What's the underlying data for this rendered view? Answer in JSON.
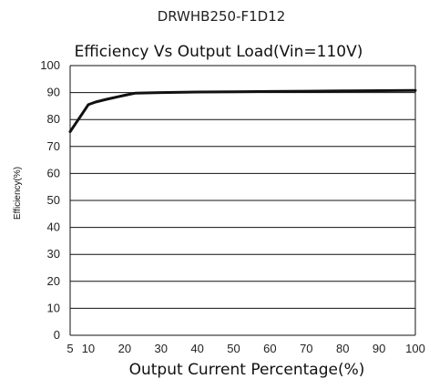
{
  "chart_data": {
    "type": "line",
    "model": "DRWHB250-F1D12",
    "title": "Efficiency Vs Output Load(Vin=110V)",
    "xlabel": "Output Current Percentage(%)",
    "ylabel": "Efficiency(%)",
    "x_ticks": [
      "5",
      "10",
      "20",
      "30",
      "40",
      "50",
      "60",
      "70",
      "80",
      "90",
      "100"
    ],
    "y_ticks": [
      "0",
      "10",
      "20",
      "30",
      "40",
      "50",
      "60",
      "70",
      "80",
      "90",
      "100"
    ],
    "xlim": [
      5,
      100
    ],
    "ylim": [
      0,
      100
    ],
    "grid": true,
    "series": [
      {
        "x": [
          5,
          7,
          9,
          10,
          12,
          15,
          20,
          23,
          30,
          40,
          50,
          60,
          70,
          80,
          90,
          100
        ],
        "values": [
          75.5,
          79.5,
          83.5,
          85.5,
          86.5,
          87.5,
          89.0,
          89.8,
          90.0,
          90.2,
          90.3,
          90.4,
          90.5,
          90.6,
          90.7,
          90.8
        ]
      }
    ],
    "colors": {
      "line": "#111111",
      "grid": "#111111",
      "axis": "#111111"
    }
  }
}
